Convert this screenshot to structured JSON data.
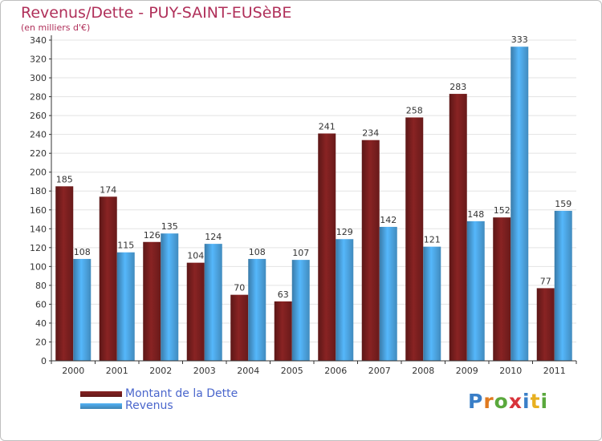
{
  "chart_data": {
    "type": "bar",
    "title": "Revenus/Dette - PUY-SAINT-EUSèBE",
    "subtitle": "(en milliers d'€)",
    "categories": [
      "2000",
      "2001",
      "2002",
      "2003",
      "2004",
      "2005",
      "2006",
      "2007",
      "2008",
      "2009",
      "2010",
      "2011"
    ],
    "series": [
      {
        "name": "Montant de la Dette",
        "color": "#7a1f1f",
        "values": [
          185,
          174,
          126,
          104,
          70,
          63,
          241,
          234,
          258,
          283,
          152,
          77
        ]
      },
      {
        "name": "Revenus",
        "color": "#4ca3e0",
        "values": [
          108,
          115,
          135,
          124,
          108,
          107,
          129,
          142,
          121,
          148,
          333,
          159
        ]
      }
    ],
    "ylim": [
      0,
      340
    ],
    "yticks": [
      0,
      20,
      40,
      60,
      80,
      100,
      120,
      140,
      160,
      180,
      200,
      220,
      240,
      260,
      280,
      300,
      320,
      340
    ],
    "grid": true,
    "legend_position": "bottom-left"
  },
  "logo": {
    "text": "Proxiti",
    "letter_colors": [
      "#3a7fc8",
      "#e07a1f",
      "#5aa83c",
      "#d8333a",
      "#3a7fc8",
      "#e8b020",
      "#5aa83c"
    ]
  }
}
